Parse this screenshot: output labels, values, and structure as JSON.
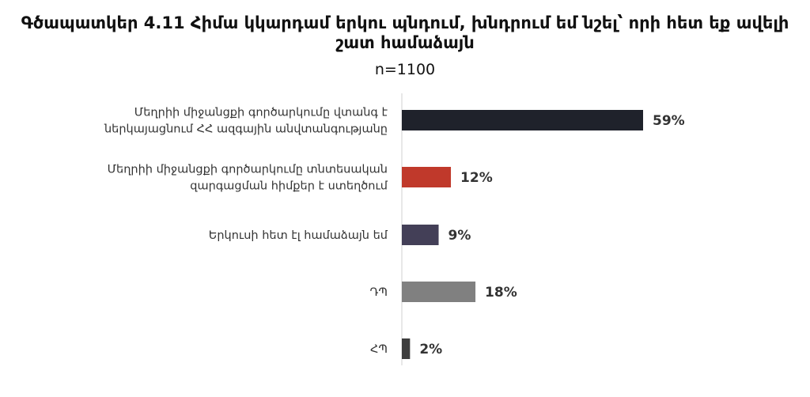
{
  "chart_data": {
    "type": "bar",
    "orientation": "horizontal",
    "title": "Գծապատկեր 4.11 Հիմա կկարդամ երկու պնդում, խնդրում եմ նշել՝ որի հետ եք ավելի շատ համաձայն",
    "subtitle": "n=1100",
    "categories": [
      [
        "Մեղրիի միջանցքի գործարկումը վտանգ է",
        "ներկայացնում ՀՀ ազգային անվտանգությանը"
      ],
      [
        "Մեղրիի միջանցքի գործարկումը տնտեսական",
        "զարգացման հիմքեր է ստեղծում"
      ],
      [
        "Երկուսի հետ էլ համաձայն եմ"
      ],
      [
        "ԴՊ"
      ],
      [
        "ՀՊ"
      ]
    ],
    "values": [
      59,
      12,
      9,
      18,
      2
    ],
    "value_labels": [
      "59%",
      "12%",
      "9%",
      "18%",
      "2%"
    ],
    "colors": [
      "#1f222b",
      "#c0392b",
      "#433f57",
      "#808080",
      "#3d3d3d"
    ],
    "unit": "%",
    "xlim": [
      0,
      60
    ],
    "grid": false,
    "legend": "none"
  }
}
